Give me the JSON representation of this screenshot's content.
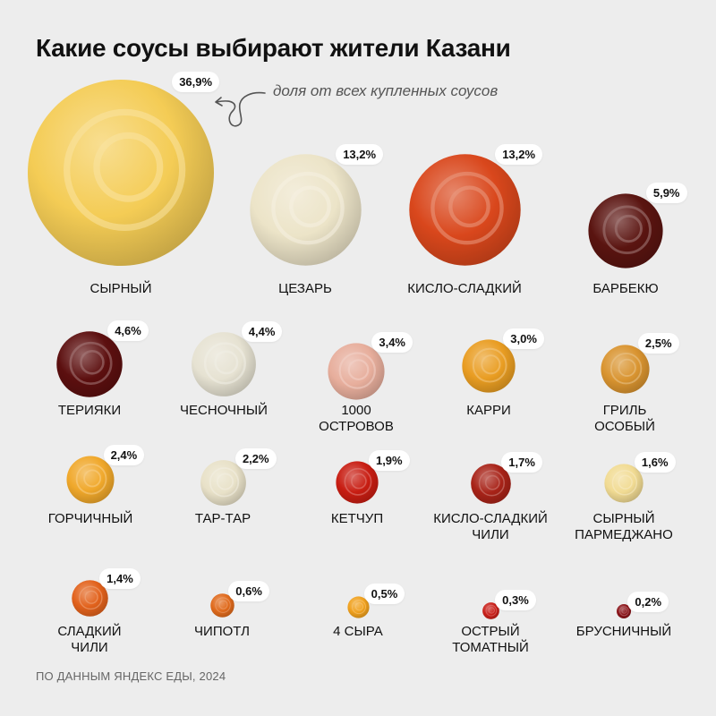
{
  "title": "Какие соусы выбирают жители Казани",
  "annotation": "доля от всех купленных соусов",
  "footer": "ПО ДАННЫМ ЯНДЕКС ЕДЫ, 2024",
  "chart_data": {
    "type": "bubble",
    "unit": "%",
    "title": "Какие соусы выбирают жители Казани",
    "items": [
      {
        "name": "СЫРНЫЙ",
        "value": 36.9,
        "label": "36,9%",
        "color": "#f4cc55"
      },
      {
        "name": "ЦЕЗАРЬ",
        "value": 13.2,
        "label": "13,2%",
        "color": "#ece4c8"
      },
      {
        "name": "КИСЛО-СЛАДКИЙ",
        "value": 13.2,
        "label": "13,2%",
        "color": "#d9471c"
      },
      {
        "name": "БАРБЕКЮ",
        "value": 5.9,
        "label": "5,9%",
        "color": "#5a1410"
      },
      {
        "name": "ТЕРИЯКИ",
        "value": 4.6,
        "label": "4,6%",
        "color": "#5c0f0f"
      },
      {
        "name": "ЧЕСНОЧНЫЙ",
        "value": 4.4,
        "label": "4,4%",
        "color": "#e6e2d2"
      },
      {
        "name": "1000\nОСТРОВОВ",
        "value": 3.4,
        "label": "3,4%",
        "color": "#e7ae9c"
      },
      {
        "name": "КАРРИ",
        "value": 3.0,
        "label": "3,0%",
        "color": "#e99d22"
      },
      {
        "name": "ГРИЛЬ\nОСОБЫЙ",
        "value": 2.5,
        "label": "2,5%",
        "color": "#d99430"
      },
      {
        "name": "ГОРЧИЧНЫЙ",
        "value": 2.4,
        "label": "2,4%",
        "color": "#f0a82b"
      },
      {
        "name": "ТАР-ТАР",
        "value": 2.2,
        "label": "2,2%",
        "color": "#e8e1c8"
      },
      {
        "name": "КЕТЧУП",
        "value": 1.9,
        "label": "1,9%",
        "color": "#c81d12"
      },
      {
        "name": "КИСЛО-СЛАДКИЙ\nЧИЛИ",
        "value": 1.7,
        "label": "1,7%",
        "color": "#a82318"
      },
      {
        "name": "СЫРНЫЙ\nПАРМЕДЖАНО",
        "value": 1.6,
        "label": "1,6%",
        "color": "#f1db93"
      },
      {
        "name": "СЛАДКИЙ\nЧИЛИ",
        "value": 1.4,
        "label": "1,4%",
        "color": "#e2621c"
      },
      {
        "name": "ЧИПОТЛ",
        "value": 0.6,
        "label": "0,6%",
        "color": "#e06a1c"
      },
      {
        "name": "4 СЫРА",
        "value": 0.5,
        "label": "0,5%",
        "color": "#f0a11e"
      },
      {
        "name": "ОСТРЫЙ\nТОМАТНЫЙ",
        "value": 0.3,
        "label": "0,3%",
        "color": "#c9201a"
      },
      {
        "name": "БРУСНИЧНЫЙ",
        "value": 0.2,
        "label": "0,2%",
        "color": "#8b1419"
      }
    ]
  }
}
